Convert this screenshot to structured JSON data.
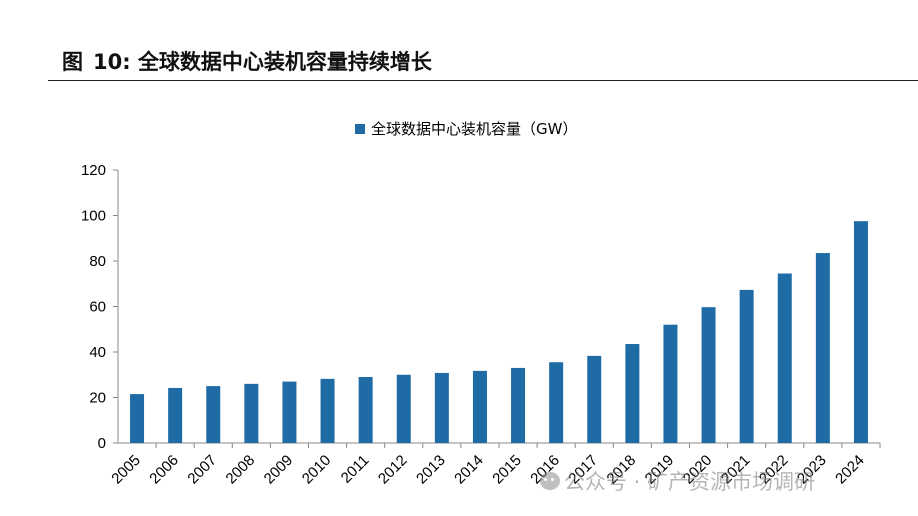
{
  "figure": {
    "label": "图",
    "number": "10:",
    "title": "全球数据中心装机容量持续增长"
  },
  "watermark": {
    "text": "公众号 · 矿产资源市场调研",
    "icon": "wechat-icon"
  },
  "chart_data": {
    "type": "bar",
    "title": "",
    "legend_position": "top-center",
    "series": [
      {
        "name": "全球数据中心装机容量（GW）",
        "color": "#1F6BA6",
        "values": [
          21.5,
          24.2,
          25,
          26,
          27,
          28.2,
          29,
          30,
          30.8,
          31.7,
          33,
          35.5,
          38.3,
          43.5,
          52,
          59.7,
          67.3,
          74.5,
          83.5,
          97.5
        ]
      }
    ],
    "categories": [
      "2005",
      "2006",
      "2007",
      "2008",
      "2009",
      "2010",
      "2011",
      "2012",
      "2013",
      "2014",
      "2015",
      "2016",
      "2017",
      "2018",
      "2019",
      "2020",
      "2021",
      "2022",
      "2023",
      "2024"
    ],
    "ylim": [
      0,
      120
    ],
    "yticks": [
      0,
      20,
      40,
      60,
      80,
      100,
      120
    ],
    "xlabel": "",
    "ylabel": "",
    "grid": false
  }
}
